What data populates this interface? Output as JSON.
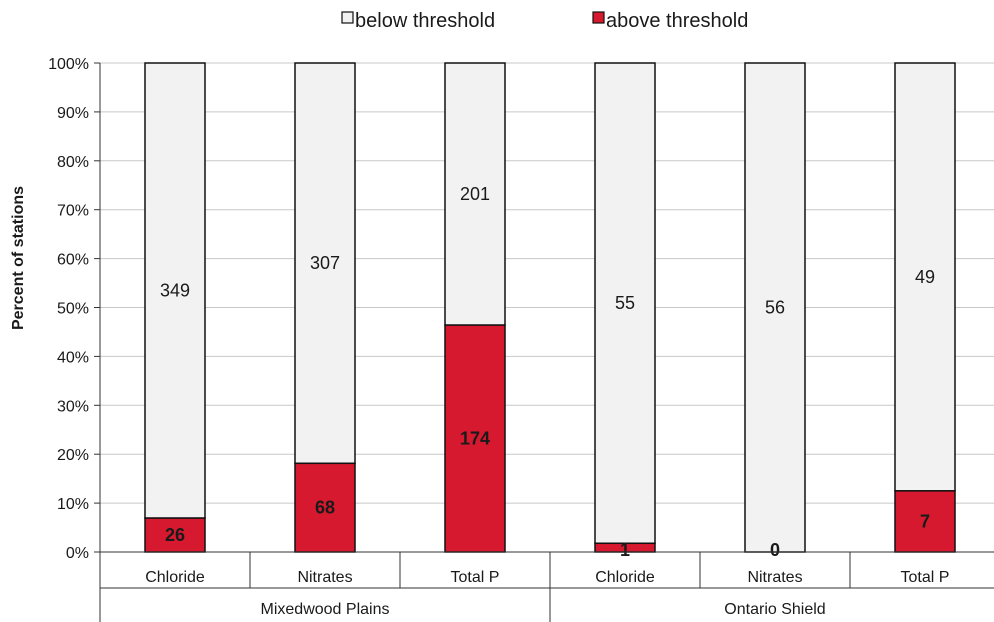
{
  "chart_data": {
    "type": "bar",
    "stacked": "percent",
    "ylabel": "Percent of stations",
    "yticks": [
      "0%",
      "10%",
      "20%",
      "30%",
      "40%",
      "50%",
      "60%",
      "70%",
      "80%",
      "90%",
      "100%"
    ],
    "ylim": [
      0,
      100
    ],
    "grid": true,
    "legend_position": "top",
    "categories": [
      "Chloride",
      "Nitrates",
      "Total P",
      "Chloride",
      "Nitrates",
      "Total P"
    ],
    "groups": [
      {
        "label": "Mixedwood Plains",
        "categories": [
          "Chloride",
          "Nitrates",
          "Total P"
        ]
      },
      {
        "label": "Ontario Shield",
        "categories": [
          "Chloride",
          "Nitrates",
          "Total P"
        ]
      }
    ],
    "series": [
      {
        "name": "below threshold",
        "values": [
          349,
          307,
          201,
          55,
          56,
          49
        ],
        "color": "#f2f2f2"
      },
      {
        "name": "above threshold",
        "values": [
          26,
          68,
          174,
          1,
          0,
          7
        ],
        "color": "#d7192f"
      }
    ]
  }
}
